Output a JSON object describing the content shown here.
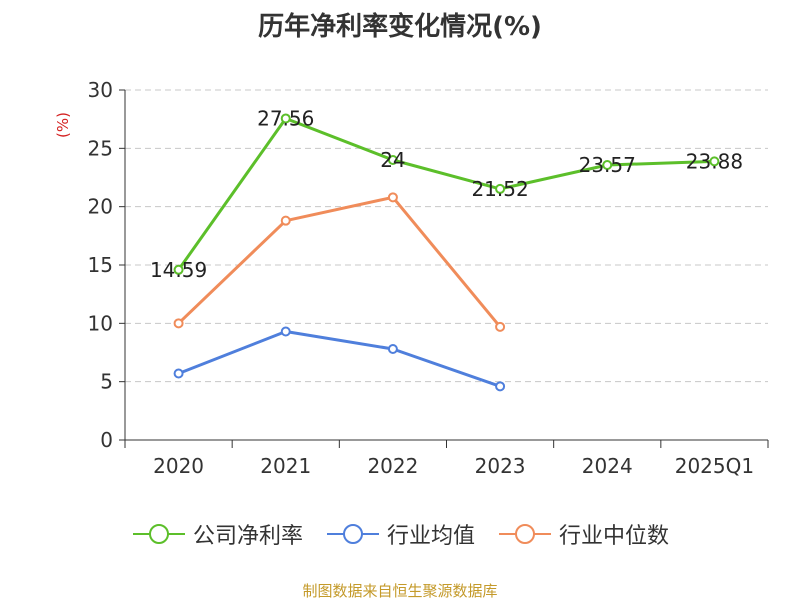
{
  "chart_data": {
    "type": "line",
    "title": "历年净利率变化情况(%)",
    "ylabel": "(%)",
    "xlabel": "",
    "categories": [
      "2020",
      "2021",
      "2022",
      "2023",
      "2024",
      "2025Q1"
    ],
    "ylim": [
      0,
      30
    ],
    "yticks": [
      0,
      5,
      10,
      15,
      20,
      25,
      30
    ],
    "grid": true,
    "legend_position": "bottom",
    "series": [
      {
        "name": "公司净利率",
        "color": "#5cbf2a",
        "values": [
          14.59,
          27.56,
          24,
          21.52,
          23.57,
          23.88
        ],
        "labels": [
          "14.59",
          "27.56",
          "24",
          "21.52",
          "23.57",
          "23.88"
        ]
      },
      {
        "name": "行业均值",
        "color": "#4f7fdc",
        "values": [
          5.7,
          9.3,
          7.8,
          4.6,
          null,
          null
        ]
      },
      {
        "name": "行业中位数",
        "color": "#f08c5a",
        "values": [
          10.0,
          18.8,
          20.8,
          9.7,
          null,
          null
        ]
      }
    ]
  },
  "source": "制图数据来自恒生聚源数据库"
}
